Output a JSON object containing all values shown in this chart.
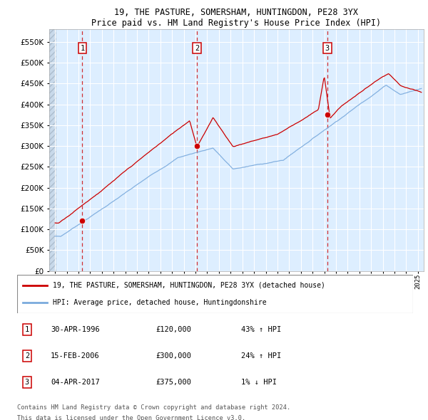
{
  "title": "19, THE PASTURE, SOMERSHAM, HUNTINGDON, PE28 3YX",
  "subtitle": "Price paid vs. HM Land Registry's House Price Index (HPI)",
  "legend_line1": "19, THE PASTURE, SOMERSHAM, HUNTINGDON, PE28 3YX (detached house)",
  "legend_line2": "HPI: Average price, detached house, Huntingdonshire",
  "footer1": "Contains HM Land Registry data © Crown copyright and database right 2024.",
  "footer2": "This data is licensed under the Open Government Licence v3.0.",
  "transactions": [
    {
      "num": 1,
      "date": "30-APR-1996",
      "price": 120000,
      "year": 1996.33,
      "hpi_pct": "43% ↑ HPI"
    },
    {
      "num": 2,
      "date": "15-FEB-2006",
      "price": 300000,
      "year": 2006.12,
      "hpi_pct": "24% ↑ HPI"
    },
    {
      "num": 3,
      "date": "04-APR-2017",
      "price": 375000,
      "year": 2017.26,
      "hpi_pct": "1% ↓ HPI"
    }
  ],
  "ylim": [
    0,
    575000
  ],
  "yticks": [
    0,
    50000,
    100000,
    150000,
    200000,
    250000,
    300000,
    350000,
    400000,
    450000,
    500000,
    550000
  ],
  "xlim_start": 1993.5,
  "xlim_end": 2025.5,
  "plot_bg": "#ddeeff",
  "red_color": "#cc0000",
  "blue_color": "#7aaadd",
  "grid_color": "#ffffff"
}
